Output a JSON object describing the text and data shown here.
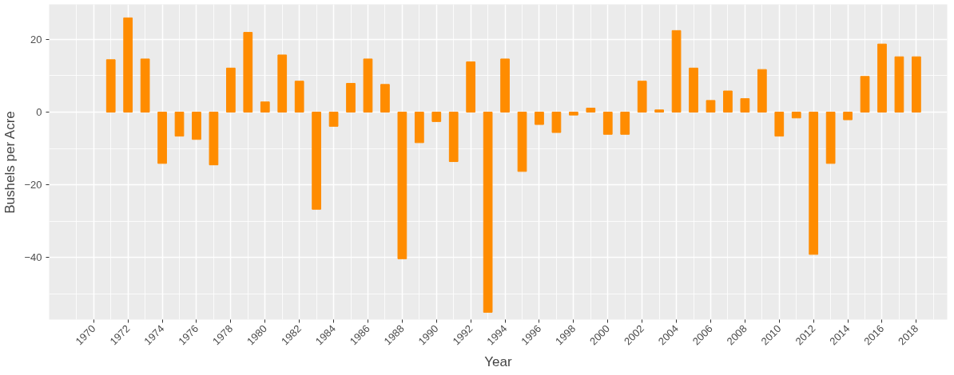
{
  "chart_data": {
    "type": "bar",
    "xlabel": "Year",
    "ylabel": "Bushels per Acre",
    "x": [
      1971,
      1972,
      1973,
      1974,
      1975,
      1976,
      1977,
      1978,
      1979,
      1980,
      1981,
      1982,
      1983,
      1984,
      1985,
      1986,
      1987,
      1988,
      1989,
      1990,
      1991,
      1992,
      1993,
      1994,
      1995,
      1996,
      1997,
      1998,
      1999,
      2000,
      2001,
      2002,
      2003,
      2004,
      2005,
      2006,
      2007,
      2008,
      2009,
      2010,
      2011,
      2012,
      2013,
      2014,
      2015,
      2016,
      2017,
      2018
    ],
    "values": [
      14.4,
      25.9,
      14.6,
      -14.1,
      -6.6,
      -7.5,
      -14.5,
      12.1,
      21.9,
      2.8,
      15.7,
      8.5,
      -26.7,
      -3.9,
      7.9,
      14.6,
      7.6,
      -40.3,
      -8.4,
      -2.6,
      -13.6,
      13.8,
      -55.0,
      14.6,
      -16.3,
      -3.4,
      -5.6,
      -0.8,
      1.1,
      -6.1,
      -6.1,
      8.5,
      0.6,
      22.4,
      12.1,
      3.2,
      5.8,
      3.7,
      11.7,
      -6.6,
      -1.6,
      -39.1,
      -14.1,
      -2.1,
      9.8,
      18.7,
      15.2,
      15.2
    ],
    "color": "#ff8c00",
    "xlim": [
      1967.4,
      2019.8
    ],
    "xticks": [
      1970,
      1972,
      1974,
      1976,
      1978,
      1980,
      1982,
      1984,
      1986,
      1988,
      1990,
      1992,
      1994,
      1996,
      1998,
      2000,
      2002,
      2004,
      2006,
      2008,
      2010,
      2012,
      2014,
      2016,
      2018
    ],
    "ylim": [
      -57,
      29.6
    ],
    "yticks": [
      -40,
      -20,
      0,
      20
    ],
    "grid": true
  }
}
